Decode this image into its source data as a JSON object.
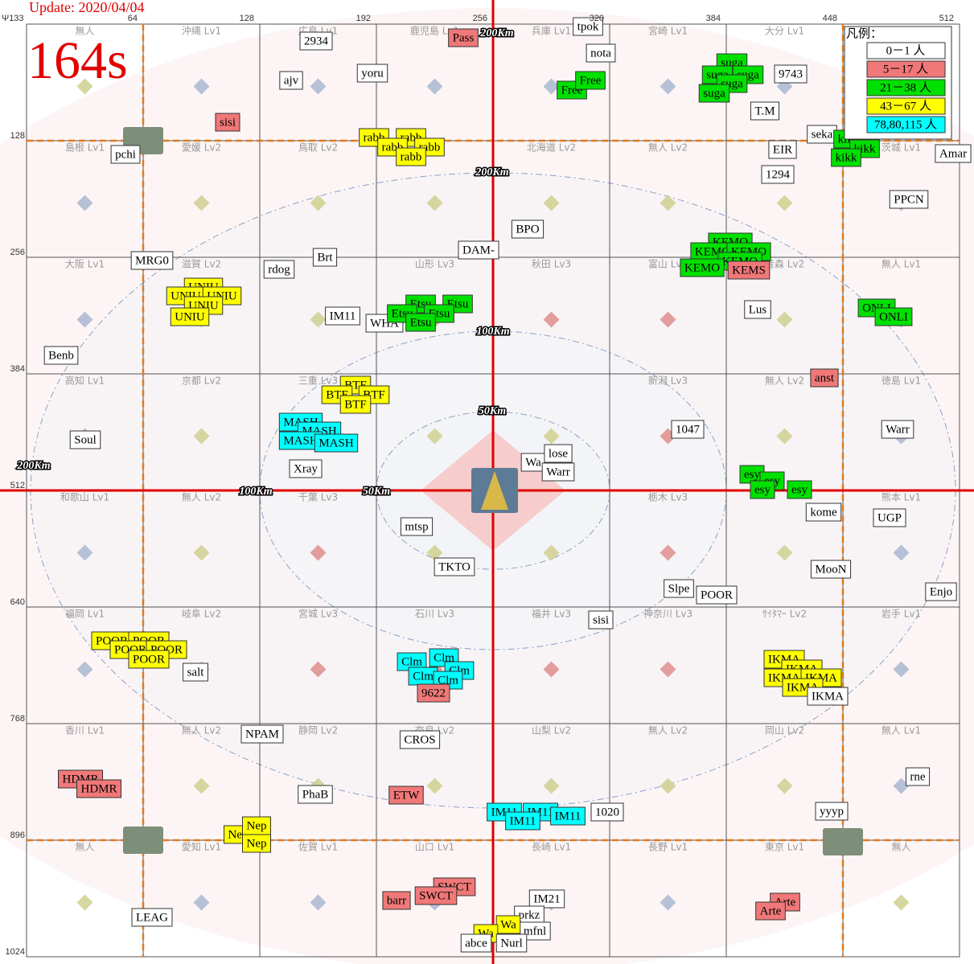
{
  "header": {
    "update": "Update: 2020/04/04",
    "timer": "164s"
  },
  "axes": {
    "corner": "Ψ133",
    "top": [
      64,
      128,
      192,
      256,
      320,
      384,
      448,
      512
    ],
    "left": [
      128,
      256,
      384,
      512,
      640,
      768,
      896,
      1024
    ]
  },
  "cells": [
    [
      "無人",
      "沖縄 Lv1",
      "広島 Lv1",
      "鹿児島 Lv1",
      "兵庫 Lv1",
      "宮崎 Lv1",
      "大分 Lv1",
      null
    ],
    [
      "島根 Lv1",
      "愛媛 Lv2",
      "鳥取 Lv2",
      null,
      "北海道 Lv2",
      "無人 Lv2",
      null,
      "茨城 Lv1"
    ],
    [
      "大阪 Lv1",
      "滋賀 Lv2",
      null,
      "山形 Lv3",
      "秋田 Lv3",
      "富山 Lv3",
      "青森 Lv2",
      "無人 Lv1"
    ],
    [
      "高知 Lv1",
      "京都 Lv2",
      "三重 Lv3",
      null,
      null,
      "新潟 Lv3",
      "無人 Lv2",
      "徳島 Lv1"
    ],
    [
      "和歌山 Lv1",
      "無人 Lv2",
      "千葉 Lv3",
      null,
      null,
      "栃木 Lv3",
      null,
      "熊本 Lv1"
    ],
    [
      "福岡 Lv1",
      "岐阜 Lv2",
      "宮城 Lv3",
      "石川 Lv3",
      "福井 Lv3",
      "神奈川 Lv3",
      "ｻｲﾀﾏｰ Lv2",
      "岩手 Lv1"
    ],
    [
      "香川 Lv1",
      "無人 Lv2",
      "静岡 Lv2",
      "奈良 Lv2",
      "山梨 Lv2",
      "無人 Lv2",
      "岡山 Lv2",
      "無人 Lv1"
    ],
    [
      "無人",
      "愛知 Lv1",
      "佐賀 Lv1",
      "山口 Lv1",
      "長崎 Lv1",
      "長野 Lv1",
      "東京 Lv1",
      "無人"
    ]
  ],
  "distances": [
    "200Km",
    "200Km",
    "100Km",
    "50Km",
    "200Km",
    "100Km",
    "50Km"
  ],
  "legend": {
    "title": "凡例：",
    "items": [
      {
        "label": "0－1 人",
        "color": "#ffffff"
      },
      {
        "label": "5－17 人",
        "color": "#f07878"
      },
      {
        "label": "21－38 人",
        "color": "#00e000"
      },
      {
        "label": "43－67 人",
        "color": "#ffff00"
      },
      {
        "label": "78,80,115 人",
        "color": "#00ffff"
      }
    ]
  },
  "players": [
    {
      "label": "2934",
      "group": 0
    },
    {
      "label": "Pass",
      "group": 1
    },
    {
      "label": "tpok",
      "group": 0
    },
    {
      "label": "nota",
      "group": 0
    },
    {
      "label": "yoru",
      "group": 0
    },
    {
      "label": "ajv",
      "group": 0
    },
    {
      "label": "Free",
      "group": 2
    },
    {
      "label": "Free",
      "group": 2
    },
    {
      "label": "suga",
      "group": 2
    },
    {
      "label": "suga",
      "group": 2
    },
    {
      "label": "suga",
      "group": 2
    },
    {
      "label": "suga",
      "group": 2
    },
    {
      "label": "suga",
      "group": 2
    },
    {
      "label": "9743",
      "group": 0
    },
    {
      "label": "sisi",
      "group": 1
    },
    {
      "label": "T.M",
      "group": 0
    },
    {
      "label": "seka",
      "group": 0
    },
    {
      "label": "kikk",
      "group": 2
    },
    {
      "label": "kikk",
      "group": 2
    },
    {
      "label": "kikk",
      "group": 2
    },
    {
      "label": "Amar",
      "group": 0
    },
    {
      "label": "pchi",
      "group": 0
    },
    {
      "label": "rabb",
      "group": 3
    },
    {
      "label": "rabb",
      "group": 3
    },
    {
      "label": "rabb",
      "group": 3
    },
    {
      "label": "rabb",
      "group": 3
    },
    {
      "label": "rabb",
      "group": 3
    },
    {
      "label": "EIR",
      "group": 0
    },
    {
      "label": "1294",
      "group": 0
    },
    {
      "label": "PPCN",
      "group": 0
    },
    {
      "label": "BPO",
      "group": 0
    },
    {
      "label": "DAM-",
      "group": 0
    },
    {
      "label": "KEMO",
      "group": 2
    },
    {
      "label": "KEMO",
      "group": 2
    },
    {
      "label": "KEMO",
      "group": 2
    },
    {
      "label": "KEMO",
      "group": 2
    },
    {
      "label": "KEMO",
      "group": 2
    },
    {
      "label": "KEMS",
      "group": 1
    },
    {
      "label": "MRG0",
      "group": 0
    },
    {
      "label": "Brt",
      "group": 0
    },
    {
      "label": "rdog",
      "group": 0
    },
    {
      "label": "UNIU",
      "group": 3
    },
    {
      "label": "UNIU",
      "group": 3
    },
    {
      "label": "UNIU",
      "group": 3
    },
    {
      "label": "UNIU",
      "group": 3
    },
    {
      "label": "UNIU",
      "group": 3
    },
    {
      "label": "IM11",
      "group": 0
    },
    {
      "label": "WHA",
      "group": 0
    },
    {
      "label": "Etsu",
      "group": 2
    },
    {
      "label": "Etsu",
      "group": 2
    },
    {
      "label": "Etsu",
      "group": 2
    },
    {
      "label": "Etsu",
      "group": 2
    },
    {
      "label": "Etsu",
      "group": 2
    },
    {
      "label": "Lus",
      "group": 0
    },
    {
      "label": "ONLI",
      "group": 2
    },
    {
      "label": "ONLI",
      "group": 2
    },
    {
      "label": "Benb",
      "group": 0
    },
    {
      "label": "anst",
      "group": 1
    },
    {
      "label": "BTF",
      "group": 3
    },
    {
      "label": "BTF",
      "group": 3
    },
    {
      "label": "BTF",
      "group": 3
    },
    {
      "label": "BTF",
      "group": 3
    },
    {
      "label": "MASH",
      "group": 4
    },
    {
      "label": "MASH",
      "group": 4
    },
    {
      "label": "MASH",
      "group": 4
    },
    {
      "label": "MASH",
      "group": 4
    },
    {
      "label": "Soul",
      "group": 0
    },
    {
      "label": "1047",
      "group": 0
    },
    {
      "label": "Warr",
      "group": 0
    },
    {
      "label": "Wa",
      "group": 0
    },
    {
      "label": "lose",
      "group": 0
    },
    {
      "label": "Warr",
      "group": 0
    },
    {
      "label": "Xray",
      "group": 0
    },
    {
      "label": "esy",
      "group": 2
    },
    {
      "label": "esy",
      "group": 2
    },
    {
      "label": "esy",
      "group": 2
    },
    {
      "label": "esy",
      "group": 2
    },
    {
      "label": "kome",
      "group": 0
    },
    {
      "label": "UGP",
      "group": 0
    },
    {
      "label": "mtsp",
      "group": 0
    },
    {
      "label": "TKTO",
      "group": 0
    },
    {
      "label": "MooN",
      "group": 0
    },
    {
      "label": "Slpe",
      "group": 0
    },
    {
      "label": "POOR",
      "group": 0
    },
    {
      "label": "Enjo",
      "group": 0
    },
    {
      "label": "sisi",
      "group": 0
    },
    {
      "label": "POOR",
      "group": 3
    },
    {
      "label": "POOR",
      "group": 3
    },
    {
      "label": "POOR",
      "group": 3
    },
    {
      "label": "POOR",
      "group": 3
    },
    {
      "label": "POOR",
      "group": 3
    },
    {
      "label": "salt",
      "group": 0
    },
    {
      "label": "Clm",
      "group": 4
    },
    {
      "label": "Clm",
      "group": 4
    },
    {
      "label": "Clm",
      "group": 4
    },
    {
      "label": "Clm",
      "group": 4
    },
    {
      "label": "Clm",
      "group": 4
    },
    {
      "label": "9622",
      "group": 1
    },
    {
      "label": "IKMA",
      "group": 3
    },
    {
      "label": "IKMA",
      "group": 3
    },
    {
      "label": "IKMA",
      "group": 3
    },
    {
      "label": "IKMA",
      "group": 3
    },
    {
      "label": "IKMA",
      "group": 3
    },
    {
      "label": "IKMA",
      "group": 0
    },
    {
      "label": "NPAM",
      "group": 0
    },
    {
      "label": "CROS",
      "group": 0
    },
    {
      "label": "HDMR",
      "group": 1
    },
    {
      "label": "HDMR",
      "group": 1
    },
    {
      "label": "rne",
      "group": 0
    },
    {
      "label": "PhaB",
      "group": 0
    },
    {
      "label": "ETW",
      "group": 1
    },
    {
      "label": "IM11",
      "group": 4
    },
    {
      "label": "IM11",
      "group": 4
    },
    {
      "label": "IM11",
      "group": 4
    },
    {
      "label": "IM11",
      "group": 4
    },
    {
      "label": "1020",
      "group": 0
    },
    {
      "label": "yyyp",
      "group": 0
    },
    {
      "label": "Nep",
      "group": 3
    },
    {
      "label": "Nep",
      "group": 3
    },
    {
      "label": "Nep",
      "group": 3
    },
    {
      "label": "IM21",
      "group": 0
    },
    {
      "label": "SWCT",
      "group": 1
    },
    {
      "label": "SWCT",
      "group": 1
    },
    {
      "label": "barr",
      "group": 1
    },
    {
      "label": "Arte",
      "group": 1
    },
    {
      "label": "Arte",
      "group": 1
    },
    {
      "label": "prkz",
      "group": 0
    },
    {
      "label": "LEAG",
      "group": 0
    },
    {
      "label": "mfnl",
      "group": 0
    },
    {
      "label": "Wa",
      "group": 3
    },
    {
      "label": "Wa",
      "group": 3
    },
    {
      "label": "abce",
      "group": 0
    },
    {
      "label": "Nurl",
      "group": 0
    }
  ]
}
